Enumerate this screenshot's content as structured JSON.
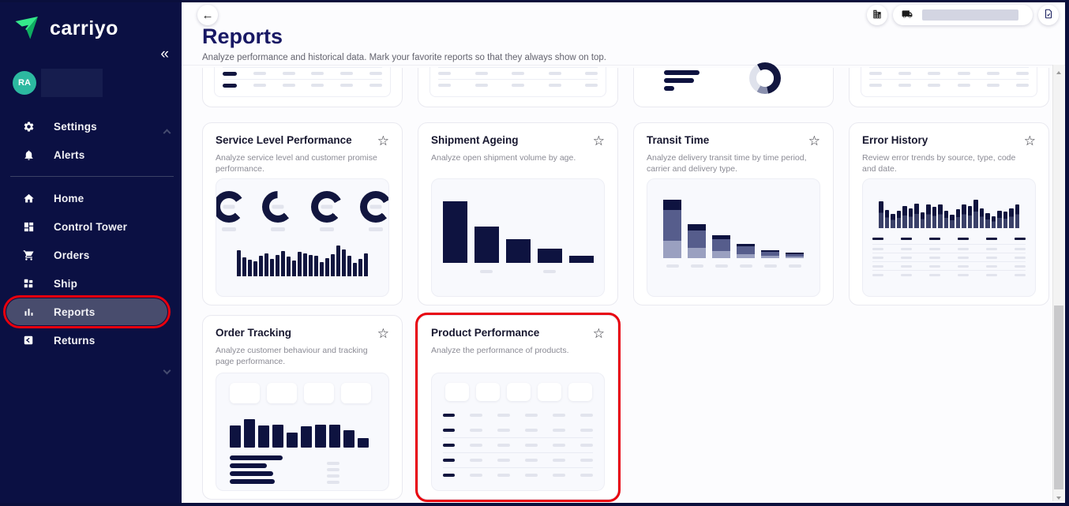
{
  "colors": {
    "sidebar_bg": "#0B1043",
    "brand_green": "#2BD97E",
    "chart_navy": "#12163F",
    "avatar_teal": "#2CB9A0",
    "annotation_red": "#E8000D",
    "active_item_bg": "#484C6D"
  },
  "icons": {
    "back": "←",
    "collapse": "«",
    "favorite": "☆"
  },
  "sidebar": {
    "logo_text": "carriyo",
    "avatar": {
      "initials": "RA"
    },
    "utility_items": [
      {
        "label": "Settings",
        "icon": "gear-icon"
      },
      {
        "label": "Alerts",
        "icon": "bell-icon"
      }
    ],
    "nav_items": [
      {
        "label": "Home",
        "icon": "home-icon",
        "active": false
      },
      {
        "label": "Control Tower",
        "icon": "dashboard-icon",
        "active": false
      },
      {
        "label": "Orders",
        "icon": "cart-icon",
        "active": false
      },
      {
        "label": "Ship",
        "icon": "cluster-icon",
        "active": false
      },
      {
        "label": "Reports",
        "icon": "bar-chart-icon",
        "active": true,
        "annotated": true
      },
      {
        "label": "Returns",
        "icon": "returns-box-icon",
        "active": false
      }
    ]
  },
  "header": {
    "title": "Reports",
    "subtitle": "Analyze performance and historical data. Mark your favorite reports so that they always show on top."
  },
  "toolbar": {
    "buttons": [
      {
        "name": "organization",
        "icon": "building-icon"
      },
      {
        "name": "shipper-selector",
        "icon": "truck-icon",
        "value": ""
      },
      {
        "name": "tasks",
        "icon": "document-check-icon"
      }
    ]
  },
  "cards": [
    {
      "title": "Service Level Performance",
      "description": "Analyze service level and customer promise performance.",
      "favorite": false,
      "thumb": {
        "type": "gauges-bars",
        "gauges": [
          78,
          62,
          80,
          80
        ],
        "bars": [
          75,
          55,
          48,
          44,
          58,
          66,
          50,
          62,
          72,
          56,
          46,
          70,
          66,
          62,
          58,
          40,
          52,
          64,
          88,
          78,
          60,
          38,
          50,
          66
        ]
      }
    },
    {
      "title": "Shipment Ageing",
      "description": "Analyze open shipment volume by age.",
      "favorite": false,
      "thumb": {
        "type": "bars-desc",
        "bars": [
          100,
          59,
          38,
          23,
          11
        ],
        "label_slots": [
          false,
          true,
          false,
          true,
          false
        ]
      }
    },
    {
      "title": "Transit Time",
      "description": "Analyze delivery transit time by time period, carrier and delivery type.",
      "favorite": false,
      "thumb": {
        "type": "stacked-desc",
        "bars": [
          100,
          58,
          39,
          24,
          13,
          9
        ],
        "segments": [
          0.18,
          0.52,
          0.3
        ]
      }
    },
    {
      "title": "Error History",
      "description": "Review error trends by source, type, code and date.",
      "favorite": false,
      "thumb": {
        "type": "bars-table",
        "bars": [
          70,
          48,
          38,
          45,
          58,
          52,
          64,
          42,
          62,
          56,
          62,
          46,
          36,
          50,
          62,
          58,
          76,
          52,
          40,
          32,
          46,
          44,
          52,
          62
        ],
        "table_rows": 4,
        "cols": 6
      }
    },
    {
      "title": "Order Tracking",
      "description": "Analyze customer behaviour and tracking page performance.",
      "favorite": false,
      "thumb": {
        "type": "tiles-bars",
        "tiles": 4,
        "bars": [
          60,
          78,
          60,
          64,
          42,
          58,
          64,
          64,
          48,
          26
        ],
        "hbars": [
          67,
          47,
          55,
          57
        ],
        "side_pills": 4
      }
    },
    {
      "title": "Product Performance",
      "description": "Analyze the performance of products.",
      "favorite": false,
      "annotated": true,
      "thumb": {
        "type": "tiles-table",
        "tiles": 5,
        "rows": 5,
        "cols": 6,
        "separators": [
          2,
          3,
          4
        ]
      }
    }
  ],
  "partial_cards": [
    {
      "thumb": {
        "type": "table",
        "rows": 2,
        "cols": 6,
        "first_navy": true
      }
    },
    {
      "thumb": {
        "type": "table",
        "rows": 2,
        "cols": 5,
        "first_navy": false
      }
    },
    {
      "thumb": {
        "type": "hbars-donut",
        "hbars": [
          45,
          38,
          13
        ]
      }
    },
    {
      "thumb": {
        "type": "table",
        "rows": 2,
        "cols": 6,
        "first_navy": false
      }
    }
  ]
}
